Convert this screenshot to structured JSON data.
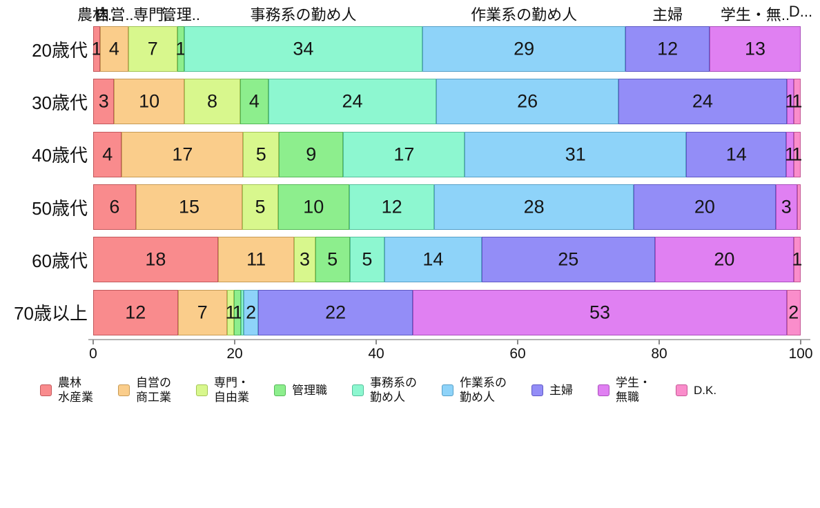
{
  "chart_data": {
    "type": "bar",
    "orientation": "horizontal-stacked",
    "title": "",
    "xlabel": "",
    "ylabel": "",
    "xlim": [
      0,
      100
    ],
    "grid": false,
    "legend_position": "bottom",
    "categories": [
      "20歳代",
      "30歳代",
      "40歳代",
      "50歳代",
      "60歳代",
      "70歳以上"
    ],
    "x_ticks": [
      "0",
      "20",
      "40",
      "60",
      "80",
      "100"
    ],
    "series": [
      {
        "name": "農林水産業",
        "legend_lines": [
          "農林",
          "水産業"
        ],
        "color": "#F98B8D",
        "border": "#C2585B",
        "values": [
          1,
          3,
          4,
          6,
          18,
          12
        ],
        "labels": [
          "1",
          "3",
          "4",
          "6",
          "18",
          "12"
        ]
      },
      {
        "name": "自営の商工業",
        "legend_lines": [
          "自営の",
          "商工業"
        ],
        "color": "#FACD8B",
        "border": "#C69A55",
        "values": [
          4,
          10,
          17,
          15,
          11,
          7
        ],
        "labels": [
          "4",
          "10",
          "17",
          "15",
          "11",
          "7"
        ]
      },
      {
        "name": "専門・自由業",
        "legend_lines": [
          "専門・",
          "自由業"
        ],
        "color": "#D8F78D",
        "border": "#A3C455",
        "values": [
          7,
          8,
          5,
          5,
          3,
          1
        ],
        "labels": [
          "7",
          "8",
          "5",
          "5",
          "3",
          "1"
        ]
      },
      {
        "name": "管理職",
        "legend_lines": [
          "管理職"
        ],
        "color": "#8DEE8D",
        "border": "#55B858",
        "values": [
          1,
          4,
          9,
          10,
          5,
          1
        ],
        "labels": [
          "1",
          "4",
          "9",
          "10",
          "5",
          "1"
        ]
      },
      {
        "name": "事務系の勤め人",
        "legend_lines": [
          "事務系の",
          "勤め人"
        ],
        "color": "#8DF7D0",
        "border": "#54C09A",
        "values": [
          34,
          24,
          17,
          12,
          5,
          0.4
        ],
        "labels": [
          "34",
          "24",
          "17",
          "12",
          "5",
          ""
        ]
      },
      {
        "name": "作業系の勤め人",
        "legend_lines": [
          "作業系の",
          "勤め人"
        ],
        "color": "#8ED3F9",
        "border": "#569FC7",
        "values": [
          29,
          26,
          31,
          28,
          14,
          2
        ],
        "labels": [
          "29",
          "26",
          "31",
          "28",
          "14",
          "2"
        ]
      },
      {
        "name": "主婦",
        "legend_lines": [
          "主婦"
        ],
        "color": "#938DF7",
        "border": "#5E58C4",
        "values": [
          12,
          24,
          14,
          20,
          25,
          22
        ],
        "labels": [
          "12",
          "24",
          "14",
          "20",
          "25",
          "22"
        ]
      },
      {
        "name": "学生・無職",
        "legend_lines": [
          "学生・",
          "無職"
        ],
        "color": "#E080F2",
        "border": "#A94FBC",
        "values": [
          13,
          1,
          1,
          3,
          20,
          53
        ],
        "labels": [
          "13",
          "1",
          "1",
          "3",
          "20",
          "53"
        ]
      },
      {
        "name": "D.K.",
        "legend_lines": [
          "D.K."
        ],
        "color": "#FA8DCB",
        "border": "#C45795",
        "values": [
          0,
          1,
          1,
          0.5,
          1,
          2
        ],
        "labels": [
          "",
          "1",
          "1",
          "",
          "1",
          "2"
        ]
      }
    ],
    "top_labels": [
      "農林..",
      "自営..",
      "専門..",
      "管理..",
      "事務系の勤め人",
      "作業系の勤め人",
      "主婦",
      "学生・無..",
      "D..."
    ]
  }
}
